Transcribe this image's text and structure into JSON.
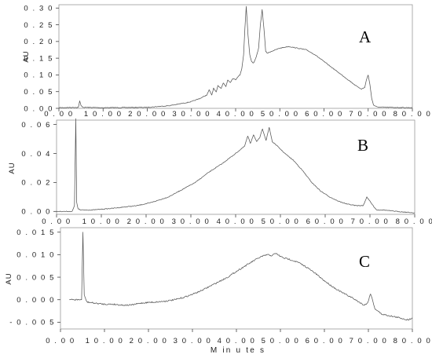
{
  "chart_data": [
    {
      "type": "line",
      "panel_tag": "A",
      "ylabel": "AU",
      "xlim": [
        0,
        80
      ],
      "ylim": [
        0.0,
        0.31
      ],
      "y_ticks": [
        0.0,
        0.05,
        0.1,
        0.15,
        0.2,
        0.25,
        0.3
      ],
      "y_tick_labels": [
        "0 . 0 0",
        "0 . 0 5",
        "0 . 1 0",
        "0 . 1 5",
        "0 . 2 0",
        "0 . 2 5",
        "0 . 3 0"
      ],
      "x_ticks": [
        0,
        10,
        20,
        30,
        40,
        50,
        60,
        70,
        80
      ],
      "x_tick_labels": [
        "0 . 0 0",
        "1 0 . 0 0",
        "2 0 . 0 0",
        "3 0 . 0 0",
        "4 0 . 0 0",
        "5 0 . 0 0",
        "6 0 . 0 0",
        "7 0 . 0 0",
        "8 0 . 0 0"
      ],
      "series": [
        {
          "x": [
            0,
            4.4,
            4.7,
            5.0,
            5.5,
            10,
            20,
            25,
            28,
            30,
            32,
            33.5,
            34,
            34.6,
            35,
            35.6,
            36,
            36.7,
            37.2,
            37.8,
            38.2,
            38.8,
            39.4,
            40,
            40.5,
            41,
            41.4,
            41.8,
            42.1,
            42.4,
            42.8,
            43.2,
            43.6,
            44,
            44.4,
            44.8,
            45.2,
            45.6,
            46,
            46.4,
            46.8,
            47.2,
            48,
            50,
            52,
            54,
            56,
            58,
            60,
            62,
            64,
            66,
            67.5,
            68.5,
            69.2,
            69.6,
            70,
            70.4,
            70.8,
            71.2,
            72,
            74,
            80
          ],
          "y": [
            0.002,
            0.003,
            0.022,
            0.008,
            0.003,
            0.002,
            0.003,
            0.008,
            0.015,
            0.02,
            0.03,
            0.04,
            0.055,
            0.04,
            0.06,
            0.048,
            0.068,
            0.06,
            0.076,
            0.065,
            0.085,
            0.078,
            0.09,
            0.085,
            0.095,
            0.1,
            0.12,
            0.16,
            0.24,
            0.305,
            0.22,
            0.16,
            0.14,
            0.135,
            0.145,
            0.16,
            0.18,
            0.25,
            0.295,
            0.24,
            0.17,
            0.165,
            0.17,
            0.18,
            0.185,
            0.18,
            0.175,
            0.16,
            0.14,
            0.12,
            0.1,
            0.08,
            0.065,
            0.058,
            0.062,
            0.085,
            0.1,
            0.07,
            0.03,
            0.01,
            0.004,
            0.003,
            0.002
          ]
        }
      ]
    },
    {
      "type": "line",
      "panel_tag": "B",
      "ylabel": "AU",
      "xlim": [
        0,
        80
      ],
      "ylim": [
        -0.002,
        0.063
      ],
      "y_ticks": [
        0.0,
        0.02,
        0.04,
        0.06
      ],
      "y_tick_labels": [
        "0 . 0 0",
        "0 . 0 2",
        "0 . 0 4",
        "0 . 0 6"
      ],
      "x_ticks": [
        0,
        10,
        20,
        30,
        40,
        50,
        60,
        70,
        80
      ],
      "x_tick_labels": [
        "0 . 0 0",
        "1 0 . 0 0",
        "2 0 . 0 0",
        "3 0 . 0 0",
        "4 0 . 0 0",
        "5 0 . 0 0",
        "6 0 . 0 0",
        "7 0 . 0 0",
        "8 0 . 0 0"
      ],
      "series": [
        {
          "x": [
            0,
            3.5,
            4.0,
            4.3,
            4.5,
            4.8,
            5.3,
            8,
            12,
            15,
            18,
            21,
            25,
            28,
            31,
            34,
            37,
            40,
            42,
            42.7,
            43.3,
            44,
            44.7,
            45.4,
            46,
            46.8,
            47.5,
            48.2,
            49,
            51,
            53,
            55,
            57,
            59,
            61,
            63,
            65,
            67,
            68.5,
            69.3,
            70,
            70.7,
            71.5,
            73,
            76,
            80
          ],
          "y": [
            0.0,
            0.0,
            0.004,
            0.064,
            0.006,
            0.002,
            0.001,
            0.001,
            0.002,
            0.003,
            0.004,
            0.006,
            0.01,
            0.015,
            0.02,
            0.027,
            0.033,
            0.04,
            0.045,
            0.052,
            0.047,
            0.053,
            0.048,
            0.051,
            0.057,
            0.049,
            0.058,
            0.048,
            0.046,
            0.04,
            0.035,
            0.028,
            0.02,
            0.014,
            0.01,
            0.007,
            0.005,
            0.004,
            0.004,
            0.01,
            0.007,
            0.004,
            0.001,
            0.001,
            0.0,
            -0.001
          ]
        }
      ]
    },
    {
      "type": "line",
      "panel_tag": "C",
      "ylabel": "AU",
      "xlabel": "M in u te s",
      "xlim": [
        0,
        80
      ],
      "ylim": [
        -0.0065,
        0.016
      ],
      "y_ticks": [
        -0.005,
        0.0,
        0.005,
        0.01,
        0.015
      ],
      "y_tick_labels": [
        "- 0 . 0 0 5",
        "0 . 0 0 0",
        "0 . 0 0 5",
        "0 . 0 1 0",
        "0 . 0 1 5"
      ],
      "x_ticks": [
        0,
        10,
        20,
        30,
        40,
        50,
        60,
        70,
        80
      ],
      "x_tick_labels": [
        "0 . 0 0",
        "1 0 . 0 0",
        "2 0 . 0 0",
        "3 0 . 0 0",
        "4 0 . 0 0",
        "5 0 . 0 0",
        "6 0 . 0 0",
        "7 0 . 0 0",
        "8 0 . 0 0"
      ],
      "series": [
        {
          "x": [
            2,
            4,
            4.8,
            5.1,
            5.4,
            6,
            8,
            10,
            12,
            14,
            16,
            18,
            20,
            22,
            24,
            26,
            28,
            30,
            32,
            34,
            36,
            38,
            40,
            42,
            44,
            45.5,
            47,
            48,
            49,
            50,
            51,
            52,
            54,
            56,
            58,
            60,
            62,
            64,
            66,
            68,
            69,
            69.8,
            70.5,
            71.5,
            73,
            75,
            77,
            79,
            80
          ],
          "y": [
            0.0,
            0.0,
            0.0,
            0.015,
            0.001,
            -0.0005,
            -0.0008,
            -0.001,
            -0.001,
            -0.0012,
            -0.0012,
            -0.0008,
            -0.0006,
            -0.0005,
            -0.0003,
            0.0,
            0.0005,
            0.0012,
            0.002,
            0.003,
            0.004,
            0.005,
            0.0063,
            0.0075,
            0.0087,
            0.0095,
            0.01,
            0.0098,
            0.0103,
            0.0096,
            0.0092,
            0.009,
            0.0083,
            0.0072,
            0.0058,
            0.0042,
            0.0028,
            0.0016,
            0.0006,
            -0.0006,
            -0.0012,
            -0.0008,
            0.0014,
            -0.002,
            -0.0032,
            -0.0036,
            -0.004,
            -0.0045,
            -0.004
          ]
        }
      ]
    }
  ]
}
